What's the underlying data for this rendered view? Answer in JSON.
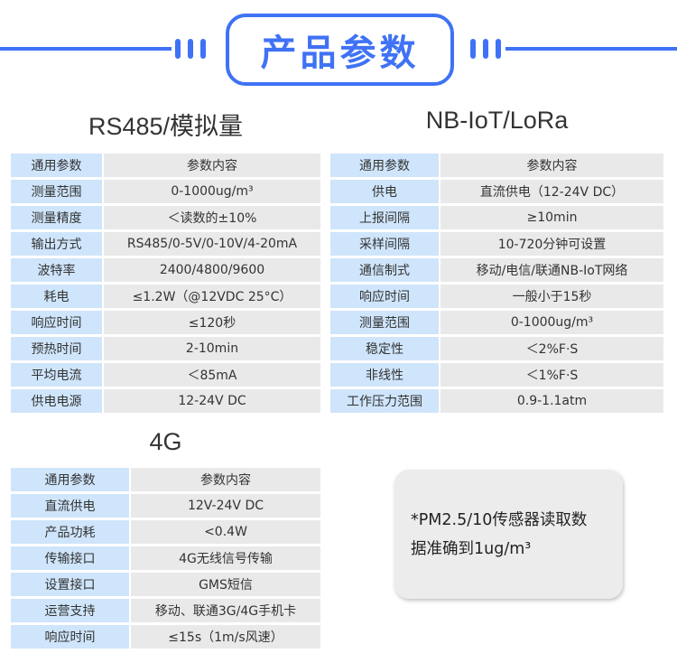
{
  "header": {
    "title": "产品参数",
    "accent_color": "#3f72f5"
  },
  "rs485": {
    "heading": "RS485/模拟量",
    "columns": [
      "通用参数",
      "参数内容"
    ],
    "rows": [
      [
        "测量范围",
        "0-1000ug/m³"
      ],
      [
        "测量精度",
        "＜读数的±10%"
      ],
      [
        "输出方式",
        "RS485/0-5V/0-10V/4-20mA"
      ],
      [
        "波特率",
        "2400/4800/9600"
      ],
      [
        "耗电",
        "≤1.2W（@12VDC 25°C）"
      ],
      [
        "响应时间",
        "≤120秒"
      ],
      [
        "预热时间",
        "2-10min"
      ],
      [
        "平均电流",
        "＜85mA"
      ],
      [
        "供电电源",
        "12-24V DC"
      ]
    ]
  },
  "nbiot": {
    "heading": "NB-IoT/LoRa",
    "columns": [
      "通用参数",
      "参数内容"
    ],
    "rows": [
      [
        "供电",
        "直流供电（12-24V DC）"
      ],
      [
        "上报间隔",
        "≥10min"
      ],
      [
        "采样间隔",
        "10-720分钟可设置"
      ],
      [
        "通信制式",
        "移动/电信/联通NB-IoT网络"
      ],
      [
        "响应时间",
        "一般小于15秒"
      ],
      [
        "测量范围",
        "0-1000ug/m³"
      ],
      [
        "稳定性",
        "＜2%F·S"
      ],
      [
        "非线性",
        "＜1%F·S"
      ],
      [
        "工作压力范围",
        "0.9-1.1atm"
      ]
    ]
  },
  "g4": {
    "heading": "4G",
    "columns": [
      "通用参数",
      "参数内容"
    ],
    "rows": [
      [
        "直流供电",
        "12V-24V DC"
      ],
      [
        "产品功耗",
        "<0.4W"
      ],
      [
        "传输接口",
        "4G无线信号传输"
      ],
      [
        "设置接口",
        "GMS短信"
      ],
      [
        "运营支持",
        "移动、联通3G/4G手机卡"
      ],
      [
        "响应时间",
        "≤15s（1m/s风速）"
      ]
    ]
  },
  "note": {
    "line1": "*PM2.5/10传感器读取数",
    "line2": "据准确到1ug/m³"
  },
  "colors": {
    "label_bg": "#cfe5fb",
    "value_bg": "#e9e9e9"
  }
}
